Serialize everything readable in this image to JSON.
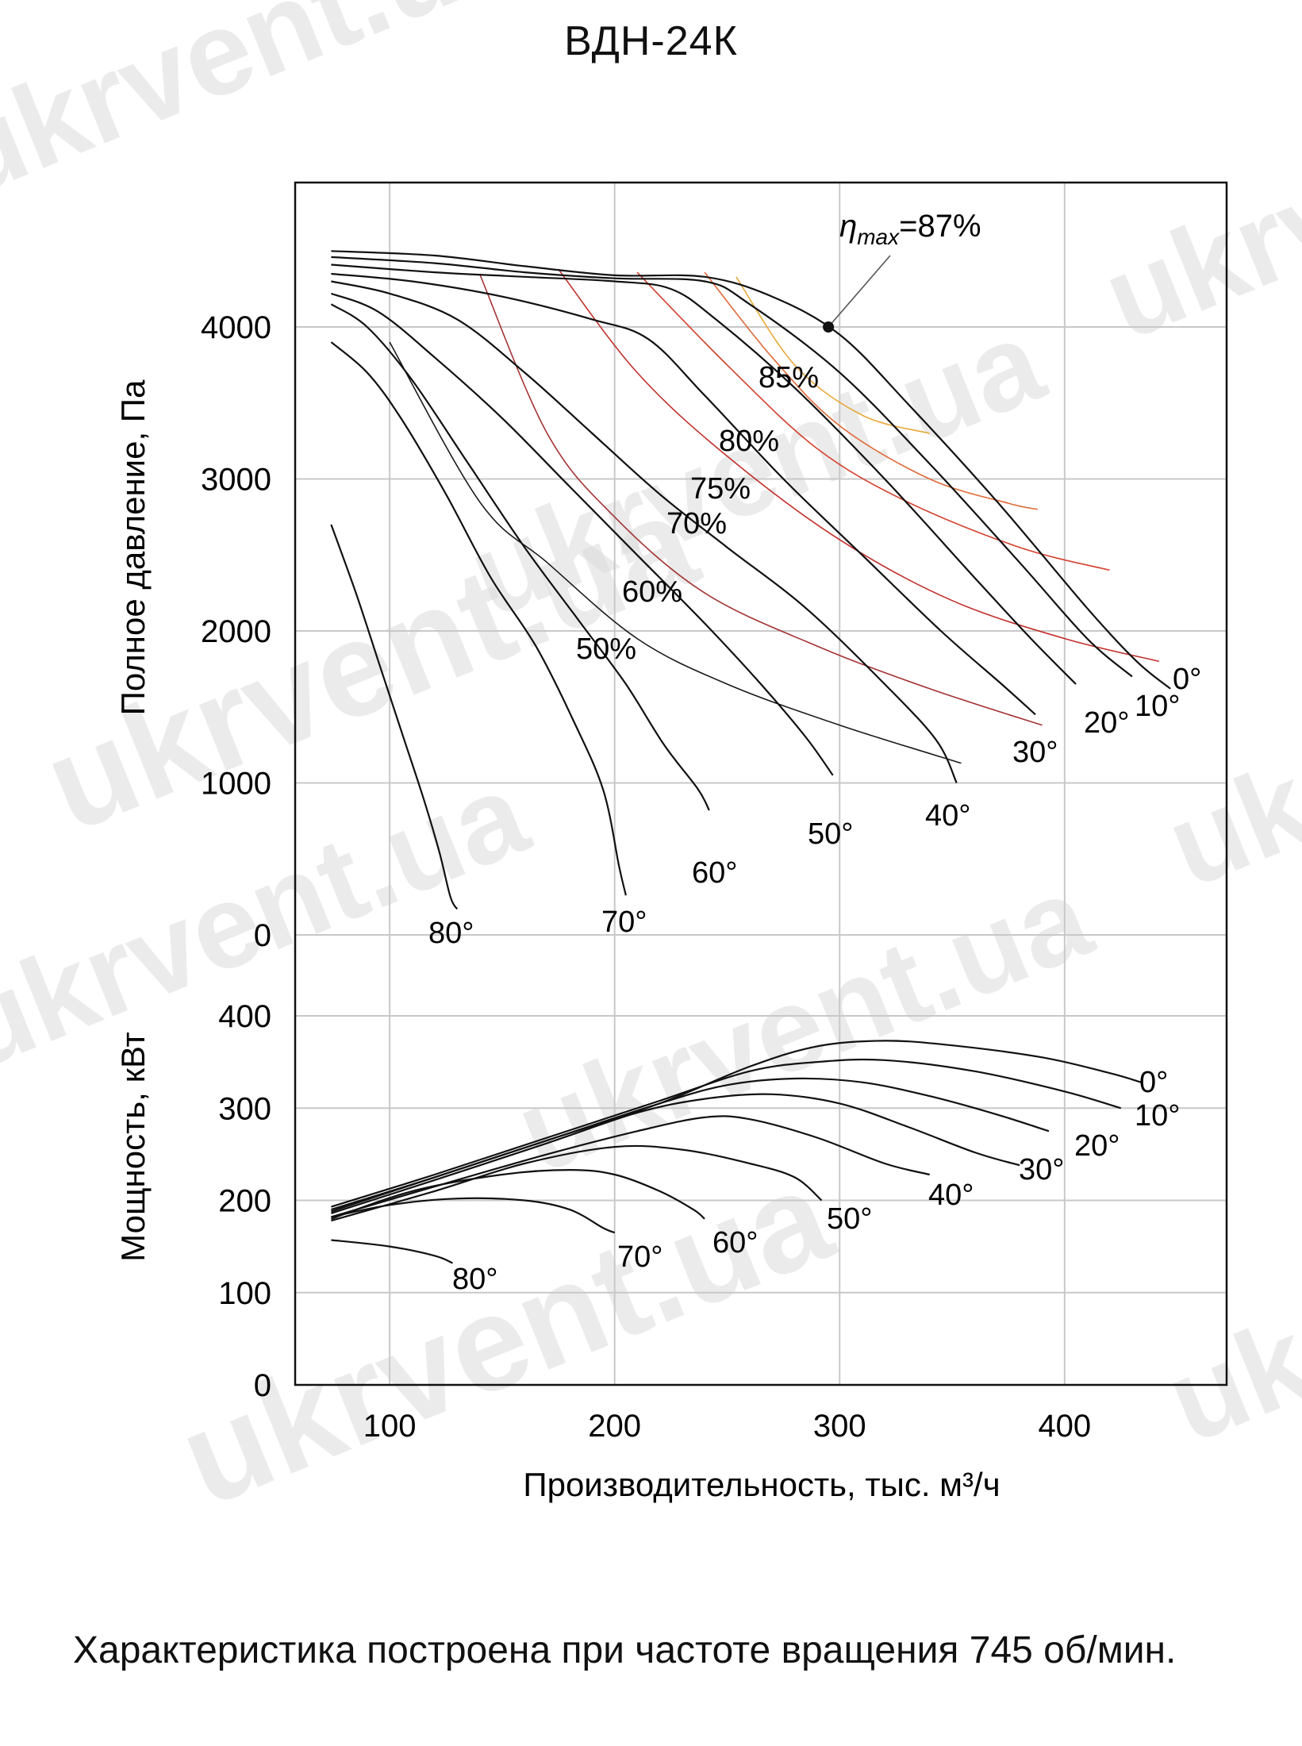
{
  "title": "ВДН-24К",
  "caption": "Характеристика построена при частоте вращения 745 об/мин.",
  "watermark": "ukrvent.ua",
  "chart_data": [
    {
      "type": "line",
      "name": "pressure",
      "xlabel": "Производительность, тыс. м³/ч",
      "ylabel": "Полное давление, Па",
      "xlim": [
        58,
        472
      ],
      "ylim": [
        -200,
        4950
      ],
      "xticks": [
        100,
        200,
        300,
        400
      ],
      "yticks": [
        0,
        1000,
        2000,
        3000,
        4000
      ],
      "grid": true,
      "series": [
        {
          "name": "0°",
          "points": [
            [
              74,
              4500
            ],
            [
              120,
              4470
            ],
            [
              160,
              4400
            ],
            [
              200,
              4340
            ],
            [
              240,
              4330
            ],
            [
              270,
              4200
            ],
            [
              300,
              3950
            ],
            [
              330,
              3500
            ],
            [
              370,
              2850
            ],
            [
              410,
              2150
            ],
            [
              432,
              1800
            ],
            [
              447,
              1620
            ]
          ]
        },
        {
          "name": "10°",
          "points": [
            [
              74,
              4460
            ],
            [
              120,
              4420
            ],
            [
              160,
              4360
            ],
            [
              200,
              4320
            ],
            [
              240,
              4300
            ],
            [
              260,
              4150
            ],
            [
              300,
              3700
            ],
            [
              340,
              3100
            ],
            [
              380,
              2450
            ],
            [
              410,
              1950
            ],
            [
              430,
              1700
            ]
          ]
        },
        {
          "name": "20°",
          "points": [
            [
              74,
              4410
            ],
            [
              120,
              4360
            ],
            [
              160,
              4330
            ],
            [
              200,
              4300
            ],
            [
              225,
              4250
            ],
            [
              245,
              4050
            ],
            [
              280,
              3600
            ],
            [
              320,
              3000
            ],
            [
              360,
              2350
            ],
            [
              385,
              1950
            ],
            [
              405,
              1650
            ]
          ]
        },
        {
          "name": "30°",
          "points": [
            [
              74,
              4350
            ],
            [
              110,
              4300
            ],
            [
              150,
              4200
            ],
            [
              190,
              4050
            ],
            [
              215,
              3920
            ],
            [
              240,
              3550
            ],
            [
              275,
              3000
            ],
            [
              310,
              2500
            ],
            [
              345,
              2000
            ],
            [
              372,
              1650
            ],
            [
              387,
              1450
            ]
          ]
        },
        {
          "name": "40°",
          "points": [
            [
              74,
              4300
            ],
            [
              100,
              4220
            ],
            [
              130,
              4050
            ],
            [
              160,
              3700
            ],
            [
              190,
              3300
            ],
            [
              220,
              2900
            ],
            [
              250,
              2550
            ],
            [
              285,
              2150
            ],
            [
              320,
              1650
            ],
            [
              343,
              1280
            ],
            [
              352,
              1000
            ]
          ]
        },
        {
          "name": "50°",
          "points": [
            [
              74,
              4220
            ],
            [
              95,
              4100
            ],
            [
              120,
              3800
            ],
            [
              150,
              3400
            ],
            [
              180,
              2950
            ],
            [
              210,
              2500
            ],
            [
              240,
              2050
            ],
            [
              265,
              1650
            ],
            [
              285,
              1300
            ],
            [
              297,
              1050
            ]
          ]
        },
        {
          "name": "60°",
          "points": [
            [
              74,
              4150
            ],
            [
              90,
              4000
            ],
            [
              110,
              3650
            ],
            [
              135,
              3100
            ],
            [
              160,
              2550
            ],
            [
              185,
              2050
            ],
            [
              205,
              1650
            ],
            [
              222,
              1250
            ],
            [
              237,
              960
            ],
            [
              242,
              820
            ]
          ]
        },
        {
          "name": "70°",
          "points": [
            [
              74,
              3900
            ],
            [
              90,
              3700
            ],
            [
              105,
              3400
            ],
            [
              125,
              2900
            ],
            [
              145,
              2350
            ],
            [
              165,
              1900
            ],
            [
              182,
              1400
            ],
            [
              195,
              950
            ],
            [
              202,
              450
            ],
            [
              205,
              260
            ]
          ]
        },
        {
          "name": "80°",
          "points": [
            [
              74,
              2700
            ],
            [
              85,
              2250
            ],
            [
              95,
              1800
            ],
            [
              105,
              1350
            ],
            [
              115,
              900
            ],
            [
              122,
              550
            ],
            [
              127,
              250
            ],
            [
              130,
              170
            ]
          ]
        }
      ],
      "efficiency_isolines": [
        {
          "name": "50%",
          "color": "#1a1a1a",
          "points": [
            [
              100,
              3900
            ],
            [
              140,
              2850
            ],
            [
              170,
              2450
            ],
            [
              210,
              1950
            ],
            [
              250,
              1650
            ],
            [
              300,
              1380
            ],
            [
              354,
              1130
            ]
          ]
        },
        {
          "name": "60%",
          "color": "#a33232",
          "points": [
            [
              140,
              4350
            ],
            [
              170,
              3300
            ],
            [
              200,
              2750
            ],
            [
              240,
              2250
            ],
            [
              290,
              1900
            ],
            [
              340,
              1620
            ],
            [
              390,
              1380
            ]
          ]
        },
        {
          "name": "70%",
          "color": "#c0302c",
          "points": [
            [
              175,
              4380
            ],
            [
              210,
              3700
            ],
            [
              250,
              3150
            ],
            [
              300,
              2600
            ],
            [
              350,
              2200
            ],
            [
              400,
              1950
            ],
            [
              442,
              1800
            ]
          ]
        },
        {
          "name": "75%",
          "color": "#d4402e",
          "points": [
            [
              210,
              4360
            ],
            [
              250,
              3750
            ],
            [
              290,
              3200
            ],
            [
              330,
              2850
            ],
            [
              380,
              2550
            ],
            [
              420,
              2400
            ]
          ]
        },
        {
          "name": "80%",
          "color": "#e06a38",
          "points": [
            [
              240,
              4360
            ],
            [
              270,
              3800
            ],
            [
              300,
              3350
            ],
            [
              340,
              3000
            ],
            [
              375,
              2840
            ],
            [
              388,
              2800
            ]
          ]
        },
        {
          "name": "85%",
          "color": "#e8a838",
          "points": [
            [
              254,
              4330
            ],
            [
              280,
              3750
            ],
            [
              310,
              3420
            ],
            [
              340,
              3300
            ]
          ]
        }
      ],
      "efficiency_labels": [
        "85%",
        "80%",
        "75%",
        "70%",
        "60%",
        "50%"
      ],
      "annotation": {
        "label_math": "η",
        "label_sub": "max",
        "label_rest": "=87%",
        "x": 295,
        "y": 4000
      }
    },
    {
      "type": "line",
      "name": "power",
      "ylabel": "Мощность, кВт",
      "xlim": [
        58,
        472
      ],
      "ylim": [
        0,
        400
      ],
      "yticks": [
        0,
        100,
        200,
        300,
        400
      ],
      "grid": true,
      "series": [
        {
          "name": "0°",
          "points": [
            [
              74,
              190
            ],
            [
              120,
              225
            ],
            [
              170,
              265
            ],
            [
              220,
              305
            ],
            [
              260,
              345
            ],
            [
              290,
              367
            ],
            [
              320,
              373
            ],
            [
              350,
              368
            ],
            [
              390,
              355
            ],
            [
              420,
              338
            ],
            [
              434,
              328
            ]
          ]
        },
        {
          "name": "10°",
          "points": [
            [
              74,
              193
            ],
            [
              120,
              228
            ],
            [
              170,
              268
            ],
            [
              220,
              308
            ],
            [
              260,
              340
            ],
            [
              290,
              350
            ],
            [
              320,
              352
            ],
            [
              360,
              340
            ],
            [
              400,
              318
            ],
            [
              425,
              300
            ]
          ]
        },
        {
          "name": "20°",
          "points": [
            [
              74,
              188
            ],
            [
              120,
              225
            ],
            [
              170,
              265
            ],
            [
              220,
              305
            ],
            [
              250,
              325
            ],
            [
              280,
              332
            ],
            [
              310,
              328
            ],
            [
              340,
              313
            ],
            [
              370,
              293
            ],
            [
              393,
              275
            ]
          ]
        },
        {
          "name": "30°",
          "points": [
            [
              74,
              186
            ],
            [
              120,
              222
            ],
            [
              170,
              262
            ],
            [
              210,
              295
            ],
            [
              240,
              310
            ],
            [
              270,
              315
            ],
            [
              300,
              305
            ],
            [
              330,
              280
            ],
            [
              360,
              252
            ],
            [
              380,
              238
            ]
          ]
        },
        {
          "name": "40°",
          "points": [
            [
              74,
              182
            ],
            [
              120,
              215
            ],
            [
              170,
              250
            ],
            [
              210,
              275
            ],
            [
              240,
              290
            ],
            [
              260,
              288
            ],
            [
              290,
              268
            ],
            [
              320,
              240
            ],
            [
              340,
              228
            ]
          ]
        },
        {
          "name": "50°",
          "points": [
            [
              74,
              178
            ],
            [
              120,
              210
            ],
            [
              160,
              240
            ],
            [
              200,
              258
            ],
            [
              230,
              255
            ],
            [
              260,
              240
            ],
            [
              280,
              225
            ],
            [
              292,
              200
            ]
          ]
        },
        {
          "name": "60°",
          "points": [
            [
              74,
              180
            ],
            [
              110,
              210
            ],
            [
              150,
              228
            ],
            [
              180,
              233
            ],
            [
              200,
              228
            ],
            [
              220,
              210
            ],
            [
              235,
              190
            ],
            [
              240,
              180
            ]
          ]
        },
        {
          "name": "70°",
          "points": [
            [
              74,
              182
            ],
            [
              100,
              195
            ],
            [
              130,
              202
            ],
            [
              160,
              200
            ],
            [
              180,
              190
            ],
            [
              195,
              170
            ],
            [
              200,
              165
            ]
          ]
        },
        {
          "name": "80°",
          "points": [
            [
              74,
              157
            ],
            [
              100,
              150
            ],
            [
              120,
              140
            ],
            [
              128,
              132
            ]
          ]
        }
      ]
    }
  ]
}
